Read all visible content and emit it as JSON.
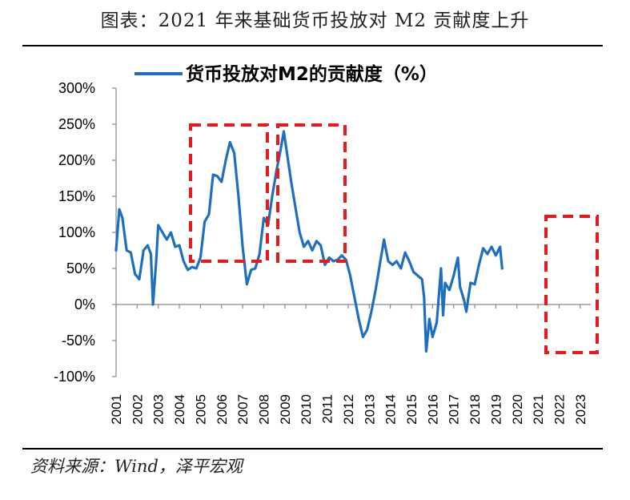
{
  "title": "图表：2021 年来基础货币投放对 M2 贡献度上升",
  "source": "资料来源：Wind，泽平宏观",
  "chart_data": {
    "type": "line",
    "legend": "top-center",
    "grid": false,
    "ylim": [
      -100,
      300
    ],
    "xlim": [
      2001,
      2023.5
    ],
    "y_ticks": [
      300,
      250,
      200,
      150,
      100,
      50,
      0,
      -50,
      -100
    ],
    "y_tick_labels": [
      "300%",
      "250%",
      "200%",
      "150%",
      "100%",
      "50%",
      "0%",
      "-50%",
      "-100%"
    ],
    "x_ticks": [
      "2001",
      "2002",
      "2003",
      "2004",
      "2005",
      "2006",
      "2007",
      "2008",
      "2009",
      "2010",
      "2011",
      "2012",
      "2013",
      "2014",
      "2015",
      "2016",
      "2017",
      "2018",
      "2019",
      "2020",
      "2021",
      "2022",
      "2023"
    ],
    "series": [
      {
        "name": "货币投放对M2的贡献度（%）",
        "color": "#1f6fc0",
        "points": [
          [
            2001.0,
            75
          ],
          [
            2001.15,
            132
          ],
          [
            2001.3,
            120
          ],
          [
            2001.5,
            75
          ],
          [
            2001.7,
            72
          ],
          [
            2001.9,
            42
          ],
          [
            2002.1,
            35
          ],
          [
            2002.3,
            75
          ],
          [
            2002.5,
            82
          ],
          [
            2002.65,
            70
          ],
          [
            2002.75,
            0
          ],
          [
            2002.9,
            60
          ],
          [
            2003.0,
            110
          ],
          [
            2003.2,
            100
          ],
          [
            2003.4,
            90
          ],
          [
            2003.6,
            100
          ],
          [
            2003.8,
            80
          ],
          [
            2004.0,
            82
          ],
          [
            2004.2,
            60
          ],
          [
            2004.4,
            48
          ],
          [
            2004.6,
            52
          ],
          [
            2004.8,
            50
          ],
          [
            2005.0,
            65
          ],
          [
            2005.2,
            115
          ],
          [
            2005.4,
            125
          ],
          [
            2005.6,
            180
          ],
          [
            2005.8,
            178
          ],
          [
            2006.0,
            170
          ],
          [
            2006.2,
            200
          ],
          [
            2006.4,
            225
          ],
          [
            2006.6,
            210
          ],
          [
            2006.8,
            150
          ],
          [
            2007.0,
            80
          ],
          [
            2007.2,
            28
          ],
          [
            2007.4,
            48
          ],
          [
            2007.6,
            50
          ],
          [
            2007.8,
            70
          ],
          [
            2008.0,
            120
          ],
          [
            2008.2,
            110
          ],
          [
            2008.4,
            150
          ],
          [
            2008.6,
            185
          ],
          [
            2008.8,
            215
          ],
          [
            2008.95,
            240
          ],
          [
            2009.1,
            210
          ],
          [
            2009.3,
            170
          ],
          [
            2009.5,
            135
          ],
          [
            2009.7,
            100
          ],
          [
            2009.9,
            80
          ],
          [
            2010.1,
            88
          ],
          [
            2010.3,
            75
          ],
          [
            2010.5,
            88
          ],
          [
            2010.7,
            82
          ],
          [
            2010.9,
            55
          ],
          [
            2011.1,
            65
          ],
          [
            2011.3,
            60
          ],
          [
            2011.5,
            62
          ],
          [
            2011.7,
            68
          ],
          [
            2011.9,
            62
          ],
          [
            2012.1,
            40
          ],
          [
            2012.3,
            10
          ],
          [
            2012.5,
            -20
          ],
          [
            2012.7,
            -45
          ],
          [
            2012.9,
            -35
          ],
          [
            2013.1,
            -10
          ],
          [
            2013.3,
            20
          ],
          [
            2013.5,
            55
          ],
          [
            2013.7,
            90
          ],
          [
            2013.9,
            60
          ],
          [
            2014.1,
            55
          ],
          [
            2014.3,
            60
          ],
          [
            2014.5,
            50
          ],
          [
            2014.7,
            72
          ],
          [
            2014.9,
            60
          ],
          [
            2015.1,
            45
          ],
          [
            2015.3,
            40
          ],
          [
            2015.5,
            35
          ],
          [
            2015.6,
            10
          ],
          [
            2015.7,
            -65
          ],
          [
            2015.85,
            -20
          ],
          [
            2016.0,
            -45
          ],
          [
            2016.2,
            -25
          ],
          [
            2016.4,
            50
          ],
          [
            2016.5,
            -15
          ],
          [
            2016.6,
            30
          ],
          [
            2016.8,
            20
          ],
          [
            2017.0,
            40
          ],
          [
            2017.2,
            65
          ],
          [
            2017.3,
            25
          ],
          [
            2017.5,
            5
          ],
          [
            2017.6,
            -10
          ],
          [
            2017.8,
            30
          ],
          [
            2018.0,
            28
          ],
          [
            2018.2,
            55
          ],
          [
            2018.4,
            78
          ],
          [
            2018.6,
            70
          ],
          [
            2018.8,
            80
          ],
          [
            2019.0,
            68
          ],
          [
            2019.2,
            80
          ],
          [
            2019.3,
            50
          ]
        ]
      }
    ]
  }
}
